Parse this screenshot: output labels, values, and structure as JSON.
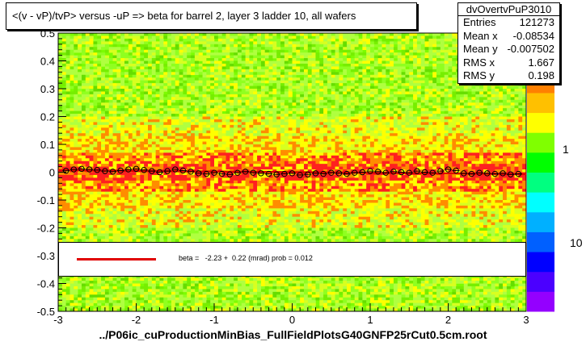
{
  "title": "<(v - vP)/tvP> versus  -uP => beta for barrel 2, layer 3 ladder 10, all wafers",
  "stats": {
    "name": "dvOvertvPuP3010",
    "rows": [
      {
        "label": "Entries",
        "value": "121273"
      },
      {
        "label": "Mean x",
        "value": "-0.08534"
      },
      {
        "label": "Mean y",
        "value": "-0.007502"
      },
      {
        "label": "RMS x",
        "value": "1.667"
      },
      {
        "label": "RMS y",
        "value": "0.198"
      }
    ]
  },
  "legend": {
    "fit_text": "beta =   -2.23 +  0.22 (mrad) prob = 0.012",
    "line_color": "#e00000"
  },
  "footer": "../P06ic_cuProductionMinBias_FullFieldPlotsG40GNFP25rCut0.5cm.root",
  "colors": {
    "background_green": "#7cfc00",
    "band_yellow": "#ffff00",
    "band_orange": "#ff8c00",
    "band_red": "#ff2020",
    "fit_line": "#e00000",
    "profile_marker": "#000000"
  },
  "chart_data": {
    "type": "heatmap",
    "xlim": [
      -3,
      3
    ],
    "ylim": [
      -0.5,
      0.5
    ],
    "x_ticks": [
      -3,
      -2,
      -1,
      0,
      1,
      2,
      3
    ],
    "y_ticks": [
      -0.5,
      -0.4,
      -0.3,
      -0.2,
      -0.1,
      0,
      0.1,
      0.2,
      0.3,
      0.4,
      0.5
    ],
    "x_tick_labels": [
      "-3",
      "-2",
      "-1",
      "0",
      "1",
      "2",
      "3"
    ],
    "y_tick_labels": [
      "-0.5",
      "-0.4",
      "-0.3",
      "-0.2",
      "-0.1",
      "0",
      "0.1",
      "0.2",
      "0.3",
      "0.4",
      "0.5"
    ],
    "z_scale": "log",
    "z_tick_labels": [
      "1",
      "10"
    ],
    "fit_line": {
      "x": [
        -3,
        3
      ],
      "y": [
        0.007,
        -0.007
      ]
    },
    "profile": {
      "x": [
        -2.9,
        -2.8,
        -2.7,
        -2.6,
        -2.5,
        -2.4,
        -2.3,
        -2.2,
        -2.1,
        -2.0,
        -1.9,
        -1.8,
        -1.7,
        -1.6,
        -1.5,
        -1.4,
        -1.3,
        -1.2,
        -1.1,
        -1.0,
        -0.9,
        -0.8,
        -0.7,
        -0.6,
        -0.5,
        -0.4,
        -0.3,
        -0.2,
        -0.1,
        0.0,
        0.1,
        0.2,
        0.3,
        0.4,
        0.5,
        0.6,
        0.7,
        0.8,
        0.9,
        1.0,
        1.1,
        1.2,
        1.3,
        1.4,
        1.5,
        1.6,
        1.7,
        1.8,
        1.9,
        2.0,
        2.1,
        2.2,
        2.3,
        2.4,
        2.5,
        2.6,
        2.7,
        2.8,
        2.9
      ],
      "y": [
        0.005,
        0.01,
        0.012,
        0.01,
        0.008,
        0.004,
        0.002,
        0.006,
        0.01,
        0.012,
        0.008,
        0.004,
        0.0,
        0.004,
        0.01,
        0.006,
        0.002,
        -0.004,
        -0.006,
        -0.002,
        -0.006,
        -0.008,
        -0.002,
        0.002,
        -0.002,
        -0.004,
        -0.006,
        -0.008,
        -0.006,
        -0.004,
        -0.01,
        -0.008,
        -0.004,
        -0.006,
        -0.002,
        -0.004,
        -0.006,
        -0.002,
        0.0,
        0.004,
        0.002,
        -0.002,
        0.002,
        0.0,
        -0.002,
        0.004,
        0.0,
        -0.002,
        0.004,
        0.01,
        0.006,
        -0.004,
        -0.006,
        -0.002,
        -0.004,
        -0.006,
        -0.004,
        -0.008,
        -0.006
      ]
    }
  }
}
